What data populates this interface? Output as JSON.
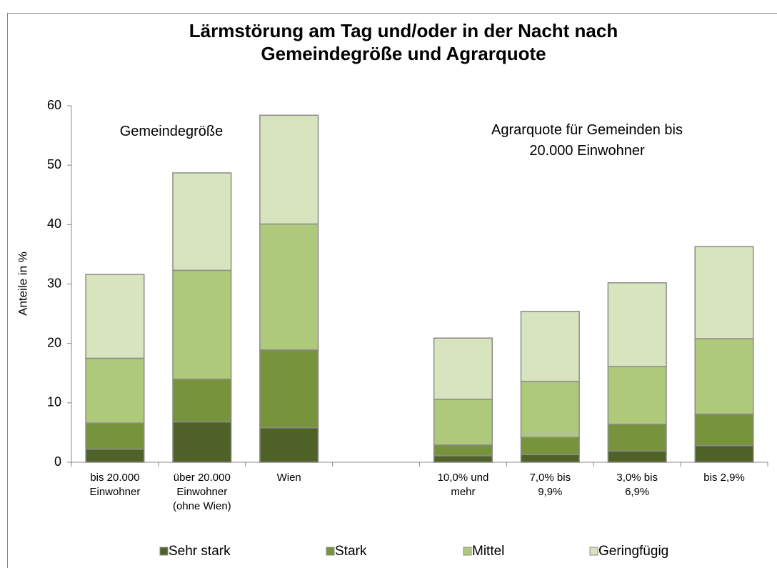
{
  "chart_data": {
    "type": "stacked_bar",
    "title": [
      "Lärmstörung am Tag und/oder in der Nacht nach",
      "Gemeindegröße und Agrarquote"
    ],
    "y_label": "Anteile in %",
    "annotations": [
      [
        "Gemeindegröße"
      ],
      [
        "Agrarquote für Gemeinden bis",
        "20.000 Einwohner"
      ]
    ],
    "categories": [
      [
        "bis 20.000",
        "Einwohner"
      ],
      [
        "über 20.000",
        "Einwohner",
        "(ohne Wien)"
      ],
      [
        "Wien"
      ],
      null,
      [
        "10,0% und",
        "mehr"
      ],
      [
        "7,0% bis",
        "9,9%"
      ],
      [
        "3,0% bis",
        "6,9%"
      ],
      [
        "bis 2,9%"
      ]
    ],
    "series": [
      {
        "name": "Sehr stark",
        "color": "#4f6228",
        "values": [
          2.2,
          6.8,
          5.8,
          null,
          1.1,
          1.3,
          1.9,
          2.8
        ]
      },
      {
        "name": "Stark",
        "color": "#77933c",
        "values": [
          4.4,
          7.2,
          13.1,
          null,
          1.8,
          2.9,
          4.5,
          5.3
        ]
      },
      {
        "name": "Mittel",
        "color": "#afc97a",
        "values": [
          10.9,
          18.3,
          21.2,
          null,
          7.7,
          9.4,
          9.7,
          12.7
        ]
      },
      {
        "name": "Geringfügig",
        "color": "#d7e4bd",
        "values": [
          14.1,
          16.4,
          18.3,
          null,
          10.3,
          11.8,
          14.1,
          15.5
        ]
      }
    ],
    "ylim": [
      0,
      60
    ],
    "yticks": [
      0,
      10,
      20,
      30,
      40,
      50,
      60
    ],
    "grid": false,
    "legend": "bottom"
  }
}
